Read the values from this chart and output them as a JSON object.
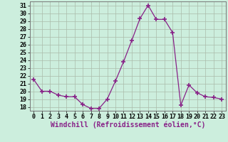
{
  "x": [
    0,
    1,
    2,
    3,
    4,
    5,
    6,
    7,
    8,
    9,
    10,
    11,
    12,
    13,
    14,
    15,
    16,
    17,
    18,
    19,
    20,
    21,
    22,
    23
  ],
  "y": [
    21.5,
    20.0,
    20.0,
    19.5,
    19.3,
    19.3,
    18.3,
    17.8,
    17.8,
    19.0,
    21.3,
    23.8,
    26.5,
    29.3,
    31.0,
    29.2,
    29.2,
    27.5,
    18.2,
    20.8,
    19.8,
    19.3,
    19.2,
    19.0
  ],
  "line_color": "#882288",
  "marker": "+",
  "marker_size": 5,
  "marker_lw": 1.2,
  "bg_color": "#cceedd",
  "grid_color": "#aabbaa",
  "xlabel": "Windchill (Refroidissement éolien,°C)",
  "xlabel_fontsize": 7,
  "tick_fontsize": 6,
  "ylim": [
    17.5,
    31.5
  ],
  "yticks": [
    18,
    19,
    20,
    21,
    22,
    23,
    24,
    25,
    26,
    27,
    28,
    29,
    30,
    31
  ],
  "xticks": [
    0,
    1,
    2,
    3,
    4,
    5,
    6,
    7,
    8,
    9,
    10,
    11,
    12,
    13,
    14,
    15,
    16,
    17,
    18,
    19,
    20,
    21,
    22,
    23
  ]
}
